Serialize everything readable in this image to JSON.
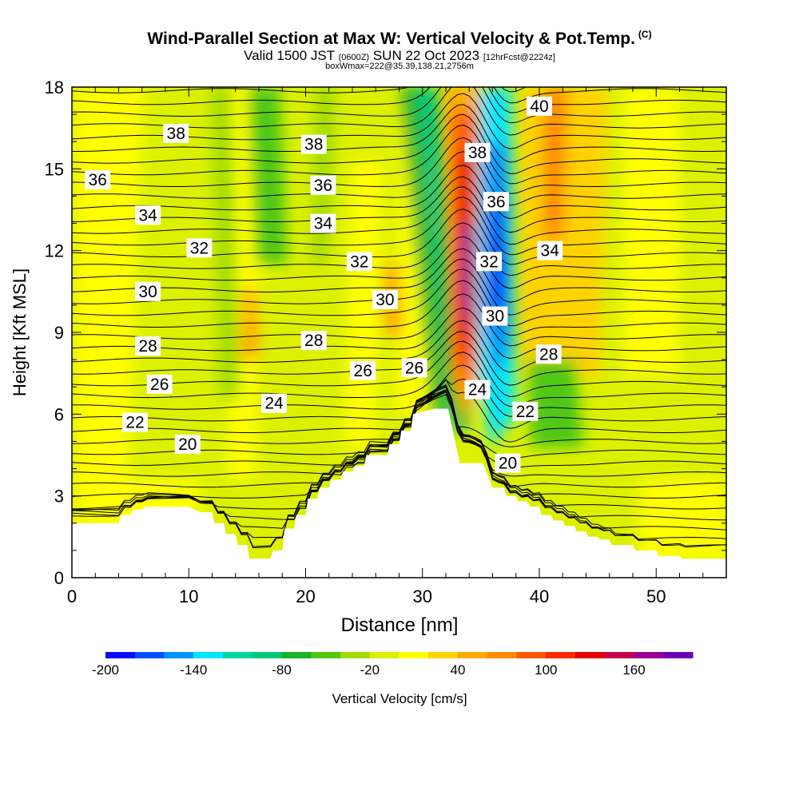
{
  "header": {
    "title": "Wind-Parallel Section at Max W: Vertical Velocity & Pot.Temp.",
    "title_mark": "(C)",
    "subtitle_valid": "Valid 1500 JST",
    "subtitle_utc": "(0600Z)",
    "subtitle_date": "SUN 22 Oct 2023",
    "subtitle_fcst": "[12hrFcst@2224z]",
    "box_info": "boxWmax=222@35.39,138.21,2756m"
  },
  "chart_data": {
    "type": "heatmap",
    "title": "Wind-Parallel Section at Max W: Vertical Velocity & Pot.Temp.",
    "xlabel": "Distance [nm]",
    "ylabel": "Height [Kft MSL]",
    "xlim": [
      0,
      56
    ],
    "ylim": [
      0,
      18
    ],
    "x_ticks": [
      0,
      10,
      20,
      30,
      40,
      50
    ],
    "x_tick_labels": [
      "0",
      "10",
      "20",
      "30",
      "40",
      "50"
    ],
    "y_ticks": [
      0,
      3,
      6,
      9,
      12,
      15,
      18
    ],
    "y_tick_labels": [
      "0",
      "3",
      "6",
      "9",
      "12",
      "15",
      "18"
    ],
    "colorbar": {
      "label": "Vertical Velocity [cm/s]",
      "min": -200,
      "max": 200,
      "step": 20,
      "tick_values": [
        -200,
        -140,
        -80,
        -20,
        40,
        100,
        160
      ],
      "tick_labels": [
        "-200",
        "-140",
        "-80",
        "-20",
        "40",
        "100",
        "160"
      ],
      "colors": [
        "#0a0aff",
        "#0050ff",
        "#0096ff",
        "#00e6ff",
        "#00d7a0",
        "#00c878",
        "#18b428",
        "#50c814",
        "#a0dc00",
        "#dcf000",
        "#ffff00",
        "#ffd200",
        "#ffaa00",
        "#ff8c00",
        "#ff5a00",
        "#ff2800",
        "#e60000",
        "#c80050",
        "#9b0096",
        "#6e00b4"
      ]
    },
    "terrain": {
      "x": [
        0,
        4,
        4.2,
        5,
        5.2,
        6,
        6.2,
        8,
        8.2,
        10,
        11,
        12,
        12.2,
        13,
        13.2,
        14,
        14.2,
        15,
        15.2,
        17,
        17.2,
        18,
        18.2,
        19,
        19.2,
        20,
        20.2,
        21,
        21.2,
        22,
        22.2,
        23,
        23.2,
        24,
        24.2,
        25,
        25.2,
        27,
        27.2,
        28,
        28.2,
        29,
        29.2,
        31,
        32.2,
        33.2,
        34,
        35.2,
        36,
        37,
        37.2,
        38,
        38.2,
        39,
        39.2,
        40,
        40.2,
        41,
        41.2,
        42,
        42.2,
        43,
        43.2,
        44,
        44.2,
        45,
        45.2,
        46,
        46.2,
        48,
        48.2,
        50,
        50.2,
        52,
        52.2,
        56
      ],
      "kft": [
        2.0,
        2.0,
        2.3,
        2.3,
        2.5,
        2.5,
        2.6,
        2.6,
        2.6,
        2.6,
        2.4,
        2.4,
        2.0,
        2.0,
        1.6,
        1.6,
        1.2,
        1.2,
        0.7,
        0.7,
        1.0,
        1.0,
        1.8,
        1.8,
        2.3,
        2.3,
        2.9,
        2.9,
        3.3,
        3.3,
        3.6,
        3.6,
        3.9,
        3.9,
        4.1,
        4.1,
        4.5,
        4.5,
        4.9,
        4.9,
        5.4,
        5.4,
        6.0,
        6.2,
        6.2,
        4.2,
        4.2,
        4.2,
        3.3,
        3.3,
        3.0,
        3.0,
        2.8,
        2.8,
        2.6,
        2.6,
        2.3,
        2.3,
        2.1,
        2.1,
        1.9,
        1.9,
        1.7,
        1.7,
        1.5,
        1.5,
        1.4,
        1.4,
        1.2,
        1.2,
        1.0,
        1.0,
        0.8,
        0.8,
        0.7,
        0.7
      ]
    },
    "isentrope_labels": [
      {
        "text": "38",
        "x": 8.9,
        "y": 16.3
      },
      {
        "text": "38",
        "x": 20.7,
        "y": 15.9
      },
      {
        "text": "40",
        "x": 40.0,
        "y": 17.3
      },
      {
        "text": "36",
        "x": 2.2,
        "y": 14.6
      },
      {
        "text": "36",
        "x": 21.5,
        "y": 14.4
      },
      {
        "text": "38",
        "x": 34.7,
        "y": 15.6
      },
      {
        "text": "34",
        "x": 6.5,
        "y": 13.3
      },
      {
        "text": "34",
        "x": 21.5,
        "y": 13.0
      },
      {
        "text": "36",
        "x": 36.3,
        "y": 13.8
      },
      {
        "text": "32",
        "x": 10.9,
        "y": 12.1
      },
      {
        "text": "32",
        "x": 24.6,
        "y": 11.6
      },
      {
        "text": "34",
        "x": 40.9,
        "y": 12.0
      },
      {
        "text": "32",
        "x": 35.7,
        "y": 11.6
      },
      {
        "text": "30",
        "x": 6.5,
        "y": 10.5
      },
      {
        "text": "30",
        "x": 26.8,
        "y": 10.2
      },
      {
        "text": "30",
        "x": 36.2,
        "y": 9.6
      },
      {
        "text": "28",
        "x": 6.5,
        "y": 8.5
      },
      {
        "text": "28",
        "x": 20.7,
        "y": 8.7
      },
      {
        "text": "28",
        "x": 40.8,
        "y": 8.2
      },
      {
        "text": "26",
        "x": 24.9,
        "y": 7.6
      },
      {
        "text": "26",
        "x": 29.3,
        "y": 7.7
      },
      {
        "text": "26",
        "x": 7.5,
        "y": 7.1
      },
      {
        "text": "24",
        "x": 17.3,
        "y": 6.4
      },
      {
        "text": "24",
        "x": 34.7,
        "y": 6.9
      },
      {
        "text": "22",
        "x": 5.4,
        "y": 5.7
      },
      {
        "text": "22",
        "x": 38.8,
        "y": 6.1
      },
      {
        "text": "20",
        "x": 9.9,
        "y": 4.9
      },
      {
        "text": "20",
        "x": 37.3,
        "y": 4.2
      }
    ]
  }
}
